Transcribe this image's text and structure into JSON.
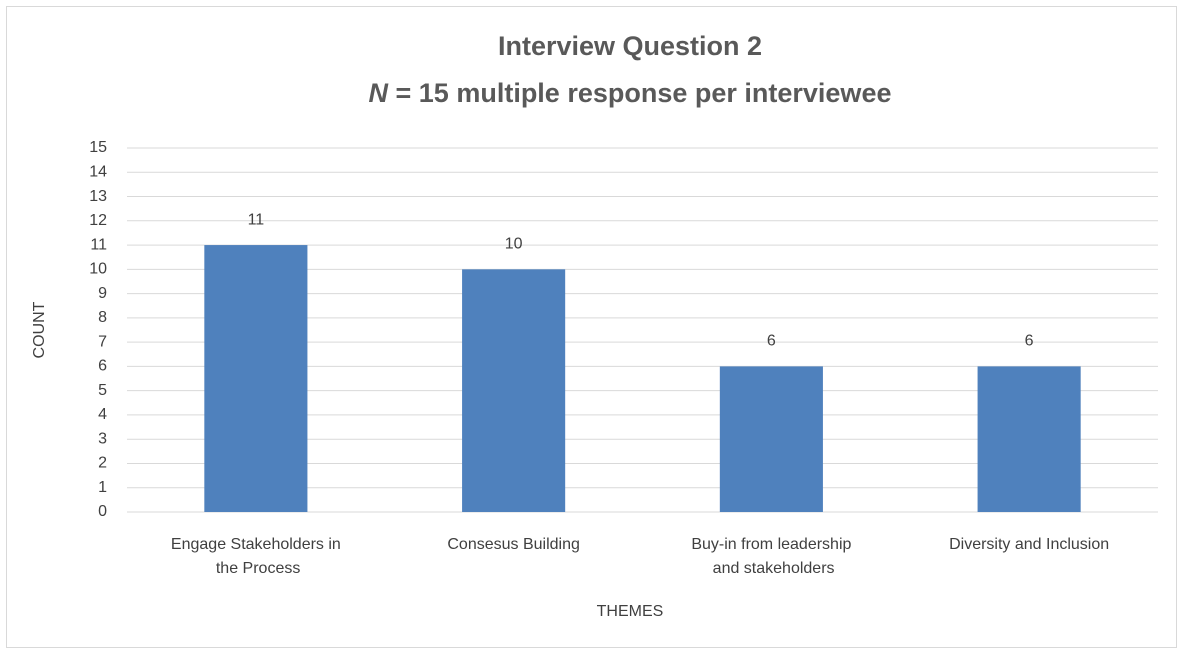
{
  "chart_data": {
    "type": "bar",
    "title": [
      "Interview Question 2",
      "N = 15 multiple response per interviewee"
    ],
    "categories": [
      "Engage Stakeholders in the Process",
      "Consesus Building",
      "Buy-in from leadership and stakeholders",
      "Diversity and Inclusion"
    ],
    "values": [
      11,
      10,
      6,
      6
    ],
    "color": "#4f81bd",
    "xlabel": "THEMES",
    "ylabel": "COUNT",
    "ylim": [
      0,
      15
    ],
    "yticks": [
      0,
      1,
      2,
      3,
      4,
      5,
      6,
      7,
      8,
      9,
      10,
      11,
      12,
      13,
      14,
      15
    ],
    "grid": true
  }
}
